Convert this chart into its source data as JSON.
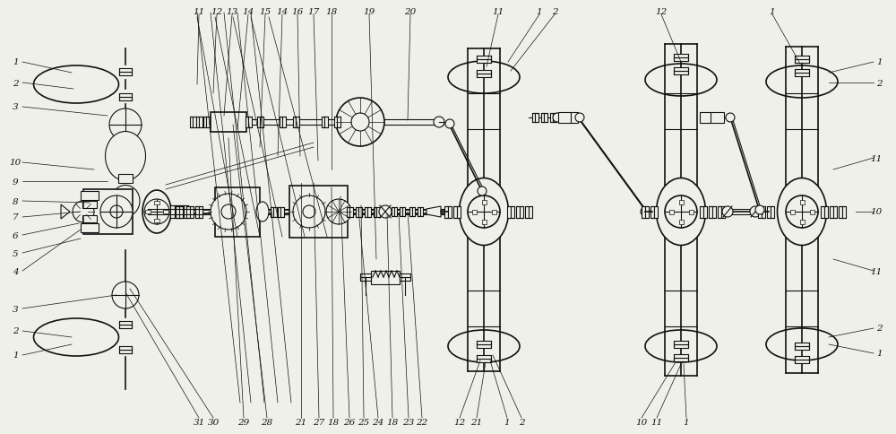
{
  "bg_color": "#f0f0eb",
  "line_color": "#111111",
  "lw": 0.8,
  "lw_thin": 0.5,
  "lw_thick": 1.2,
  "fig_w": 10.0,
  "fig_h": 4.85
}
